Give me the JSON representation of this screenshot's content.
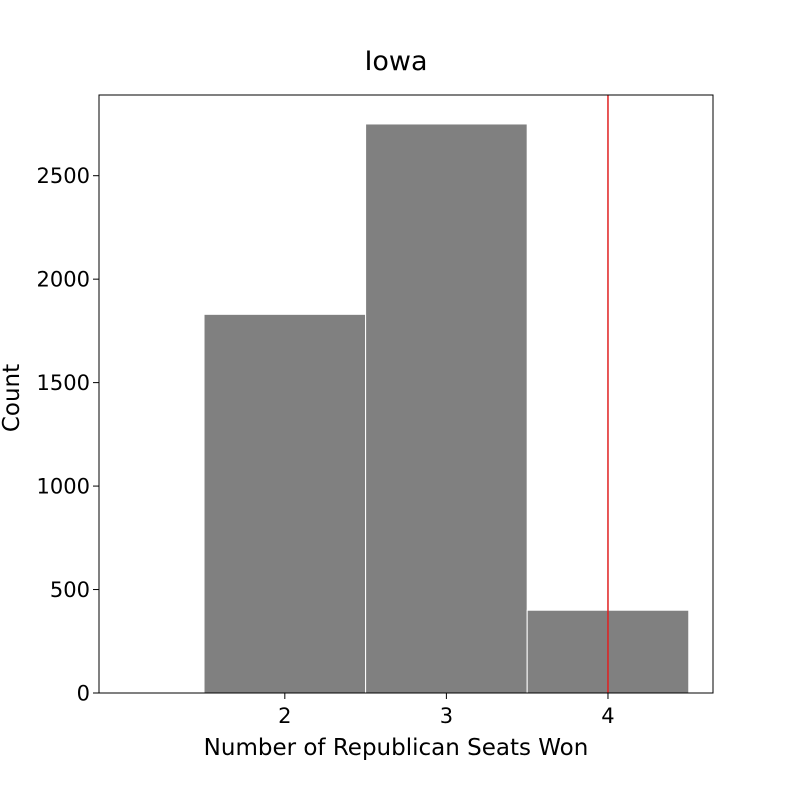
{
  "chart_data": {
    "type": "bar",
    "title": "Iowa",
    "xlabel": "Number of Republican Seats Won",
    "ylabel": "Count",
    "bins": [
      {
        "left": 1.5,
        "right": 2.5,
        "count": 1830
      },
      {
        "left": 2.5,
        "right": 3.5,
        "count": 2750
      },
      {
        "left": 3.5,
        "right": 4.5,
        "count": 400
      }
    ],
    "xlim": [
      0.85,
      4.65
    ],
    "ylim": [
      0,
      2890
    ],
    "xticks": [
      2,
      3,
      4
    ],
    "yticks": [
      0,
      500,
      1000,
      1500,
      2000,
      2500
    ],
    "reference_line": {
      "x": 4,
      "color": "#e02020"
    },
    "bar_color": "#808080",
    "bar_edge_color": "#ffffff",
    "grid": false,
    "legend": "none"
  }
}
